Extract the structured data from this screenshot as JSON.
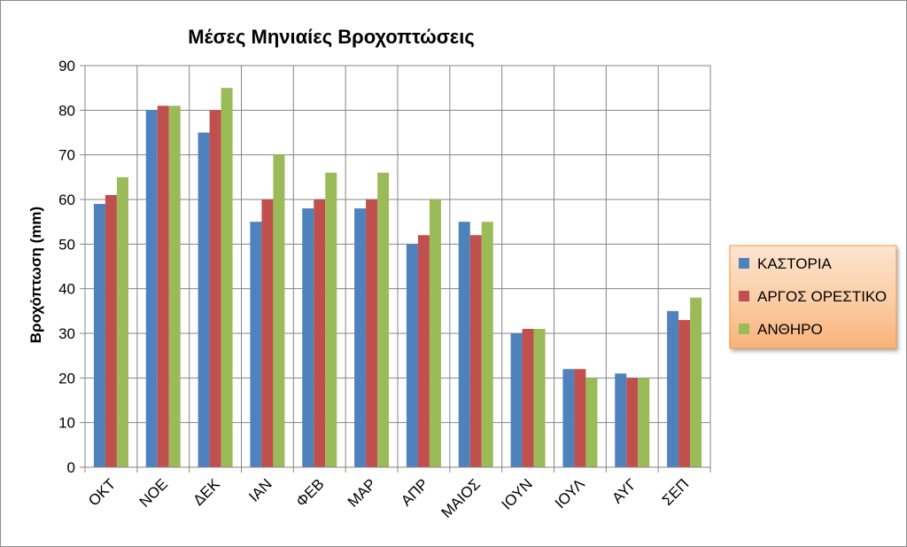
{
  "chart_data": {
    "type": "bar",
    "title": "Μέσες Μηνιαίες Βροχοπτώσεις",
    "xlabel": "",
    "ylabel": "Βροχόπτωση (mm)",
    "ylim": [
      0,
      90
    ],
    "yticks": [
      0,
      10,
      20,
      30,
      40,
      50,
      60,
      70,
      80,
      90
    ],
    "grid": true,
    "legend_position": "right",
    "categories": [
      "ΟΚΤ",
      "ΝΟΕ",
      "ΔΕΚ",
      "ΙΑΝ",
      "ΦΕΒ",
      "ΜΑΡ",
      "ΑΠΡ",
      "ΜΑΙΟΣ",
      "ΙΟΥΝ",
      "ΙΟΥΛ",
      "ΑΥΓ",
      "ΣΕΠ"
    ],
    "series": [
      {
        "name": "ΚΑΣΤΟΡΙΑ",
        "color": "#4f81bd",
        "values": [
          59,
          80,
          75,
          55,
          58,
          58,
          50,
          55,
          30,
          22,
          21,
          35
        ]
      },
      {
        "name": "ΑΡΓΟΣ ΟΡΕΣΤΙΚΟ",
        "color": "#c0504d",
        "values": [
          61,
          81,
          80,
          60,
          60,
          60,
          52,
          52,
          31,
          22,
          20,
          33
        ]
      },
      {
        "name": "ΑΝΘΗΡΟ",
        "color": "#9bbb59",
        "values": [
          65,
          81,
          85,
          70,
          66,
          66,
          60,
          55,
          31,
          20,
          20,
          38
        ]
      }
    ]
  }
}
